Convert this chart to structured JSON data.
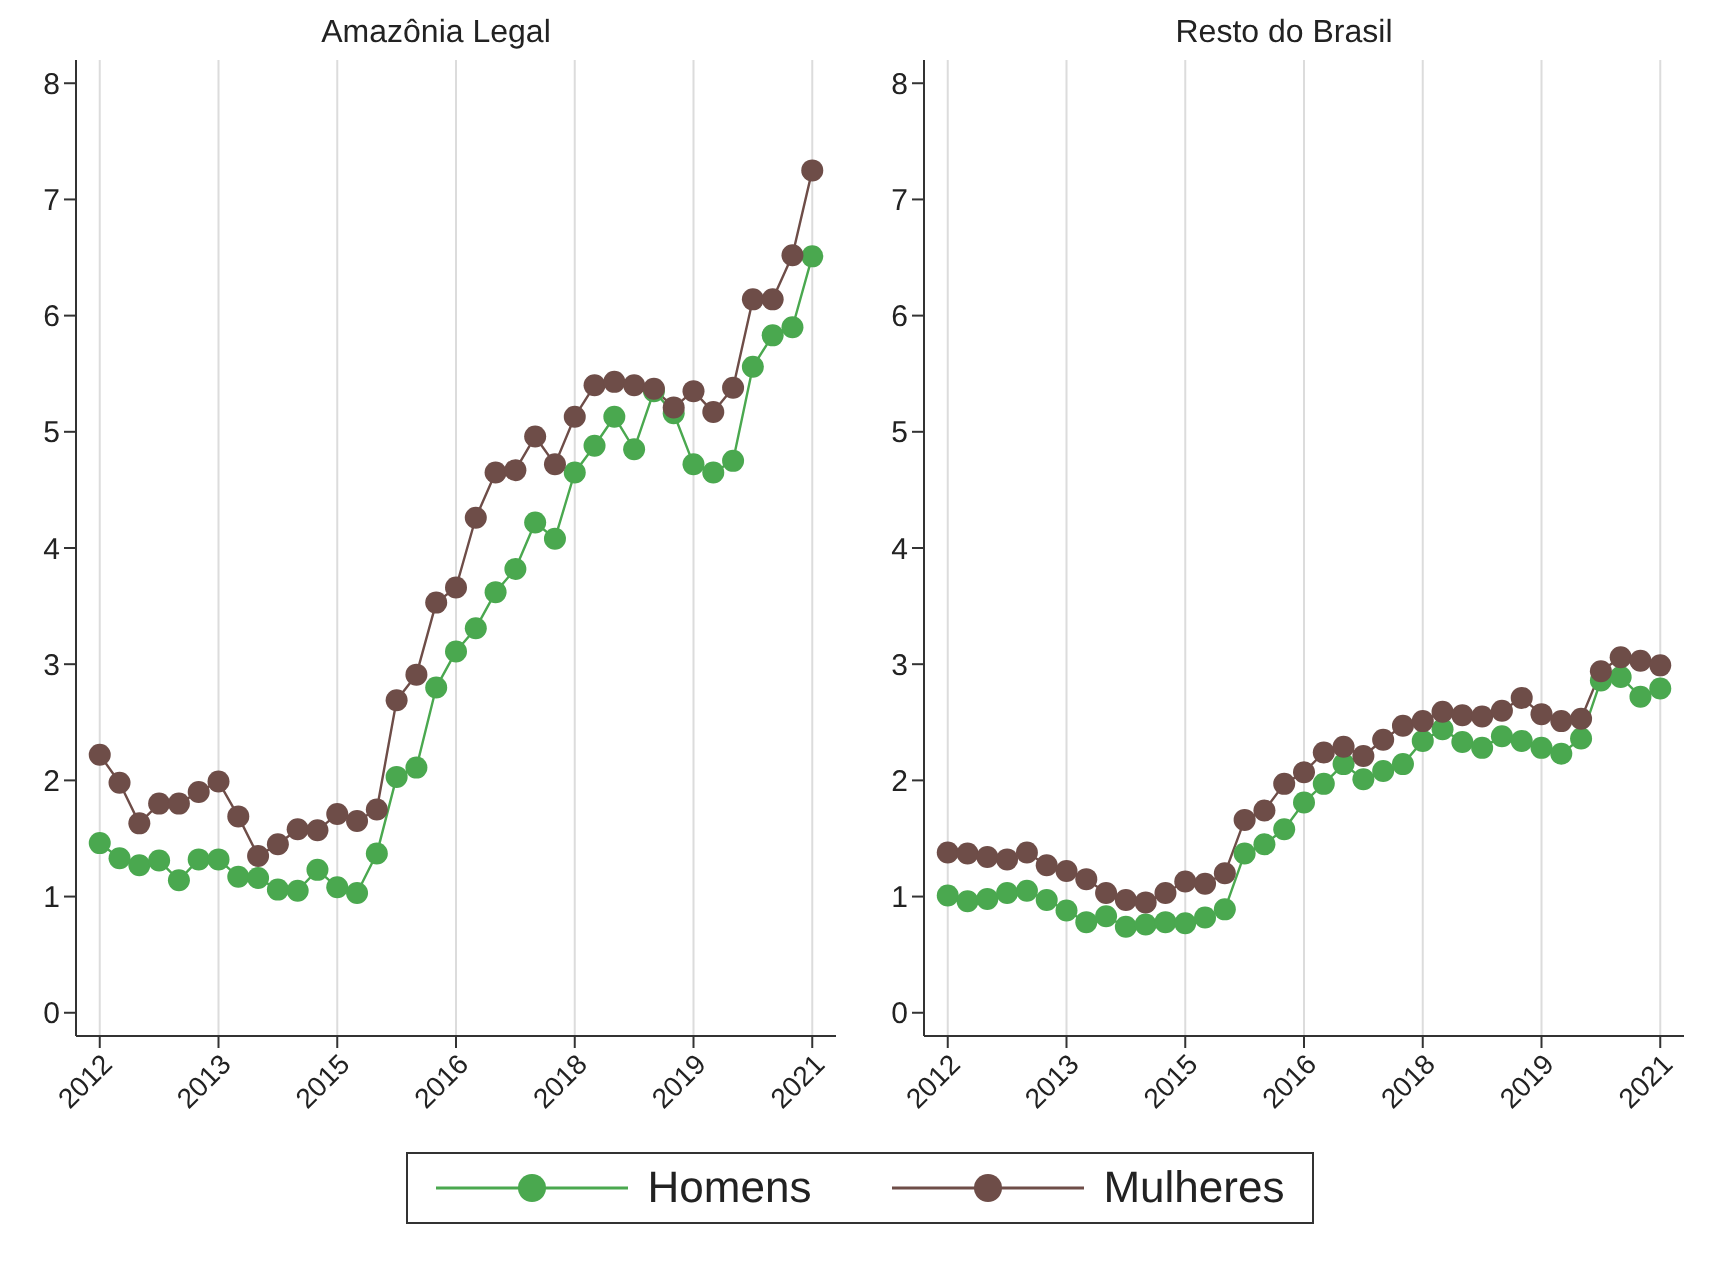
{
  "chart_data": [
    {
      "type": "line",
      "title": "Amazônia Legal",
      "x": [
        2012,
        2012.25,
        2012.5,
        2012.75,
        2013,
        2013.25,
        2013.5,
        2013.75,
        2014,
        2014.25,
        2014.5,
        2014.75,
        2015,
        2015.25,
        2015.5,
        2015.75,
        2016,
        2016.25,
        2016.5,
        2016.75,
        2017,
        2017.25,
        2017.5,
        2017.75,
        2018,
        2018.25,
        2018.5,
        2018.75,
        2019,
        2019.25,
        2019.5,
        2019.75,
        2020,
        2020.25,
        2020.5,
        2020.75,
        2021
      ],
      "series": [
        {
          "name": "Homens",
          "color": "#4aa84f",
          "values": [
            1.46,
            1.33,
            1.27,
            1.31,
            1.14,
            1.32,
            1.32,
            1.17,
            1.16,
            1.06,
            1.05,
            1.23,
            1.08,
            1.03,
            1.37,
            2.03,
            2.11,
            2.8,
            3.11,
            3.31,
            3.62,
            3.82,
            4.22,
            4.08,
            4.65,
            4.88,
            5.13,
            4.85,
            5.35,
            5.16,
            4.72,
            4.65,
            4.75,
            5.56,
            5.83,
            5.9,
            6.51
          ]
        },
        {
          "name": "Mulheres",
          "color": "#6e4d48",
          "values": [
            2.22,
            1.98,
            1.63,
            1.8,
            1.8,
            1.9,
            1.99,
            1.69,
            1.35,
            1.45,
            1.58,
            1.57,
            1.71,
            1.65,
            1.75,
            2.69,
            2.91,
            3.53,
            3.66,
            4.26,
            4.65,
            4.67,
            4.96,
            4.72,
            5.13,
            5.4,
            5.43,
            5.4,
            5.37,
            5.21,
            5.35,
            5.17,
            5.38,
            6.14,
            6.14,
            6.52,
            7.25
          ]
        }
      ],
      "xlim": [
        2011.7,
        2021.3
      ],
      "xticks": [
        2012,
        {
          "value": 2013.5,
          "label": "2013"
        },
        2015,
        {
          "value": 2016.5,
          "label": "2016"
        },
        2018,
        {
          "value": 2019.5,
          "label": "2019"
        },
        2021
      ],
      "ylim": [
        -0.2,
        8.2
      ],
      "yticks": [
        0,
        1,
        2,
        3,
        4,
        5,
        6,
        7,
        8
      ],
      "grid": "x",
      "marker": "circle",
      "legend": "bottom"
    },
    {
      "type": "line",
      "title": "Resto do Brasil",
      "x": [
        2012,
        2012.25,
        2012.5,
        2012.75,
        2013,
        2013.25,
        2013.5,
        2013.75,
        2014,
        2014.25,
        2014.5,
        2014.75,
        2015,
        2015.25,
        2015.5,
        2015.75,
        2016,
        2016.25,
        2016.5,
        2016.75,
        2017,
        2017.25,
        2017.5,
        2017.75,
        2018,
        2018.25,
        2018.5,
        2018.75,
        2019,
        2019.25,
        2019.5,
        2019.75,
        2020,
        2020.25,
        2020.5,
        2020.75,
        2021
      ],
      "series": [
        {
          "color": "#4aa84f",
          "values": [
            1.01,
            0.96,
            0.98,
            1.03,
            1.05,
            0.97,
            0.88,
            0.78,
            0.83,
            0.74,
            0.76,
            0.78,
            0.77,
            0.82,
            0.89,
            1.37,
            1.45,
            1.58,
            1.81,
            1.97,
            2.14,
            2.01,
            2.08,
            2.14,
            2.34,
            2.44,
            2.33,
            2.28,
            2.38,
            2.34,
            2.28,
            2.23,
            2.36,
            2.86,
            2.89,
            2.72,
            2.79
          ]
        },
        {
          "color": "#6e4d48",
          "values": [
            1.38,
            1.37,
            1.34,
            1.32,
            1.38,
            1.27,
            1.22,
            1.15,
            1.03,
            0.97,
            0.95,
            1.03,
            1.13,
            1.11,
            1.2,
            1.66,
            1.74,
            1.97,
            2.07,
            2.24,
            2.29,
            2.21,
            2.35,
            2.47,
            2.51,
            2.59,
            2.56,
            2.55,
            2.6,
            2.71,
            2.57,
            2.51,
            2.53,
            2.94,
            3.06,
            3.03,
            2.99
          ]
        }
      ],
      "xlim": [
        2011.7,
        2021.3
      ],
      "xticks": [
        2012,
        {
          "value": 2013.5,
          "label": "2013"
        },
        2015,
        {
          "value": 2016.5,
          "label": "2016"
        },
        2018,
        {
          "value": 2019.5,
          "label": "2019"
        },
        2021
      ],
      "ylim": [
        -0.2,
        8.2
      ],
      "yticks": [
        0,
        1,
        2,
        3,
        4,
        5,
        6,
        7,
        8
      ],
      "grid": "x",
      "marker": "circle"
    }
  ]
}
